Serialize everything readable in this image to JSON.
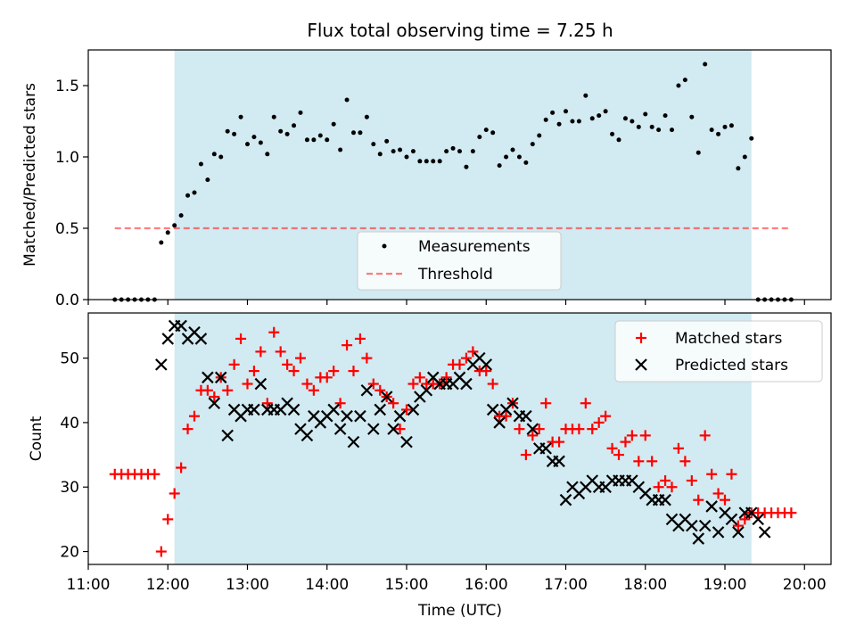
{
  "title": "Flux total observing time = 7.25 h",
  "colors": {
    "shade": "#add8e6",
    "measurement": "#000000",
    "threshold": "#ff0000",
    "matched": "#ff0000",
    "predicted": "#000000"
  },
  "chart_data": [
    {
      "type": "scatter",
      "ylabel": "Matched/Predicted stars",
      "xlim": [
        "11:00",
        "20:20"
      ],
      "ylim": [
        0,
        1.75
      ],
      "yticks": [
        "0.0",
        "0.5",
        "1.0",
        "1.5"
      ],
      "grid": false,
      "legend": "bottom-center",
      "shaded_interval": [
        "12:05",
        "19:20"
      ],
      "threshold": {
        "name": "Threshold",
        "value": 0.5,
        "x_range": [
          "11:20",
          "19:50"
        ],
        "style": "dashed"
      },
      "series": [
        {
          "name": "Measurements",
          "points": [
            [
              "11:20",
              0
            ],
            [
              "11:25",
              0
            ],
            [
              "11:30",
              0
            ],
            [
              "11:35",
              0
            ],
            [
              "11:40",
              0
            ],
            [
              "11:45",
              0
            ],
            [
              "11:50",
              0
            ],
            [
              "11:55",
              0.4
            ],
            [
              "12:00",
              0.47
            ],
            [
              "12:05",
              0.52
            ],
            [
              "12:10",
              0.59
            ],
            [
              "12:15",
              0.73
            ],
            [
              "12:20",
              0.75
            ],
            [
              "12:25",
              0.95
            ],
            [
              "12:30",
              0.84
            ],
            [
              "12:35",
              1.02
            ],
            [
              "12:40",
              1.0
            ],
            [
              "12:45",
              1.18
            ],
            [
              "12:50",
              1.16
            ],
            [
              "12:55",
              1.28
            ],
            [
              "13:00",
              1.09
            ],
            [
              "13:05",
              1.14
            ],
            [
              "13:10",
              1.1
            ],
            [
              "13:15",
              1.02
            ],
            [
              "13:20",
              1.28
            ],
            [
              "13:25",
              1.18
            ],
            [
              "13:30",
              1.16
            ],
            [
              "13:35",
              1.22
            ],
            [
              "13:40",
              1.31
            ],
            [
              "13:45",
              1.12
            ],
            [
              "13:50",
              1.12
            ],
            [
              "13:55",
              1.15
            ],
            [
              "14:00",
              1.12
            ],
            [
              "14:05",
              1.23
            ],
            [
              "14:10",
              1.05
            ],
            [
              "14:15",
              1.4
            ],
            [
              "14:20",
              1.17
            ],
            [
              "14:25",
              1.17
            ],
            [
              "14:30",
              1.28
            ],
            [
              "14:35",
              1.09
            ],
            [
              "14:40",
              1.02
            ],
            [
              "14:45",
              1.11
            ],
            [
              "14:50",
              1.04
            ],
            [
              "14:55",
              1.05
            ],
            [
              "15:00",
              1.0
            ],
            [
              "15:05",
              1.04
            ],
            [
              "15:10",
              0.97
            ],
            [
              "15:15",
              0.97
            ],
            [
              "15:20",
              0.97
            ],
            [
              "15:25",
              0.97
            ],
            [
              "15:30",
              1.04
            ],
            [
              "15:35",
              1.06
            ],
            [
              "15:40",
              1.04
            ],
            [
              "15:45",
              0.93
            ],
            [
              "15:50",
              1.04
            ],
            [
              "15:55",
              1.14
            ],
            [
              "16:00",
              1.19
            ],
            [
              "16:05",
              1.17
            ],
            [
              "16:10",
              0.94
            ],
            [
              "16:15",
              1.0
            ],
            [
              "16:20",
              1.05
            ],
            [
              "16:25",
              1.0
            ],
            [
              "16:30",
              0.96
            ],
            [
              "16:35",
              1.09
            ],
            [
              "16:40",
              1.15
            ],
            [
              "16:45",
              1.26
            ],
            [
              "16:50",
              1.31
            ],
            [
              "16:55",
              1.23
            ],
            [
              "17:00",
              1.32
            ],
            [
              "17:05",
              1.25
            ],
            [
              "17:10",
              1.25
            ],
            [
              "17:15",
              1.43
            ],
            [
              "17:20",
              1.27
            ],
            [
              "17:25",
              1.29
            ],
            [
              "17:30",
              1.32
            ],
            [
              "17:35",
              1.16
            ],
            [
              "17:40",
              1.12
            ],
            [
              "17:45",
              1.27
            ],
            [
              "17:50",
              1.25
            ],
            [
              "17:55",
              1.21
            ],
            [
              "18:00",
              1.3
            ],
            [
              "18:05",
              1.21
            ],
            [
              "18:10",
              1.19
            ],
            [
              "18:15",
              1.29
            ],
            [
              "18:20",
              1.19
            ],
            [
              "18:25",
              1.5
            ],
            [
              "18:30",
              1.54
            ],
            [
              "18:35",
              1.28
            ],
            [
              "18:40",
              1.03
            ],
            [
              "18:45",
              1.65
            ],
            [
              "18:50",
              1.19
            ],
            [
              "18:55",
              1.16
            ],
            [
              "19:00",
              1.21
            ],
            [
              "19:05",
              1.22
            ],
            [
              "19:10",
              0.92
            ],
            [
              "19:15",
              1.0
            ],
            [
              "19:20",
              1.13
            ],
            [
              "19:25",
              0
            ],
            [
              "19:30",
              0
            ],
            [
              "19:35",
              0
            ],
            [
              "19:40",
              0
            ],
            [
              "19:45",
              0
            ],
            [
              "19:50",
              0
            ]
          ]
        }
      ]
    },
    {
      "type": "scatter",
      "xlabel": "Time (UTC)",
      "ylabel": "Count",
      "xlim": [
        "11:00",
        "20:20"
      ],
      "ylim": [
        18,
        57
      ],
      "xticks": [
        "11:00",
        "12:00",
        "13:00",
        "14:00",
        "15:00",
        "16:00",
        "17:00",
        "18:00",
        "19:00",
        "20:00"
      ],
      "yticks": [
        "20",
        "30",
        "40",
        "50"
      ],
      "grid": false,
      "legend": "top-right",
      "shaded_interval": [
        "12:05",
        "19:20"
      ],
      "x": [
        "11:20",
        "11:25",
        "11:30",
        "11:35",
        "11:40",
        "11:45",
        "11:50",
        "11:55",
        "12:00",
        "12:05",
        "12:10",
        "12:15",
        "12:20",
        "12:25",
        "12:30",
        "12:35",
        "12:40",
        "12:45",
        "12:50",
        "12:55",
        "13:00",
        "13:05",
        "13:10",
        "13:15",
        "13:20",
        "13:25",
        "13:30",
        "13:35",
        "13:40",
        "13:45",
        "13:50",
        "13:55",
        "14:00",
        "14:05",
        "14:10",
        "14:15",
        "14:20",
        "14:25",
        "14:30",
        "14:35",
        "14:40",
        "14:45",
        "14:50",
        "14:55",
        "15:00",
        "15:05",
        "15:10",
        "15:15",
        "15:20",
        "15:25",
        "15:30",
        "15:35",
        "15:40",
        "15:45",
        "15:50",
        "15:55",
        "16:00",
        "16:05",
        "16:10",
        "16:15",
        "16:20",
        "16:25",
        "16:30",
        "16:35",
        "16:40",
        "16:45",
        "16:50",
        "16:55",
        "17:00",
        "17:05",
        "17:10",
        "17:15",
        "17:20",
        "17:25",
        "17:30",
        "17:35",
        "17:40",
        "17:45",
        "17:50",
        "17:55",
        "18:00",
        "18:05",
        "18:10",
        "18:15",
        "18:20",
        "18:25",
        "18:30",
        "18:35",
        "18:40",
        "18:45",
        "18:50",
        "18:55",
        "19:00",
        "19:05",
        "19:10",
        "19:15",
        "19:20",
        "19:25",
        "19:30",
        "19:35",
        "19:40",
        "19:45",
        "19:50"
      ],
      "series": [
        {
          "name": "Matched stars",
          "marker": "plus",
          "values": [
            32,
            32,
            32,
            32,
            32,
            32,
            32,
            20,
            25,
            29,
            33,
            39,
            41,
            45,
            45,
            44,
            47,
            45,
            49,
            53,
            46,
            48,
            51,
            43,
            54,
            51,
            49,
            48,
            50,
            46,
            45,
            47,
            47,
            48,
            43,
            52,
            48,
            53,
            50,
            46,
            45,
            44,
            43,
            39,
            42,
            46,
            47,
            46,
            46,
            46,
            47,
            49,
            49,
            50,
            51,
            48,
            48,
            46,
            41,
            41,
            43,
            39,
            35,
            38,
            39,
            43,
            37,
            37,
            39,
            39,
            39,
            43,
            39,
            40,
            41,
            36,
            35,
            37,
            38,
            34,
            38,
            34,
            30,
            31,
            30,
            36,
            34,
            31,
            28,
            38,
            32,
            29,
            28,
            32,
            24,
            25,
            26,
            26,
            26,
            26,
            26,
            26,
            26
          ],
          "note_x_offset_hint": ""
        },
        {
          "name": "Predicted stars",
          "marker": "x",
          "values": [
            null,
            null,
            null,
            null,
            null,
            null,
            null,
            49,
            53,
            55,
            55,
            53,
            54,
            53,
            47,
            43,
            47,
            38,
            42,
            41,
            42,
            42,
            46,
            42,
            42,
            42,
            43,
            42,
            39,
            38,
            41,
            40,
            41,
            42,
            39,
            41,
            37,
            41,
            45,
            39,
            42,
            44,
            39,
            41,
            37,
            42,
            44,
            45,
            47,
            46,
            46,
            46,
            47,
            46,
            49,
            50,
            49,
            42,
            40,
            42,
            43,
            41,
            41,
            39,
            36,
            36,
            34,
            34,
            28,
            30,
            29,
            30,
            31,
            30,
            30,
            31,
            31,
            31,
            31,
            30,
            29,
            28,
            28,
            28,
            25,
            24,
            25,
            24,
            22,
            24,
            27,
            23,
            26,
            25,
            23,
            26,
            26,
            25,
            23,
            null,
            null,
            null,
            null
          ]
        }
      ]
    }
  ]
}
